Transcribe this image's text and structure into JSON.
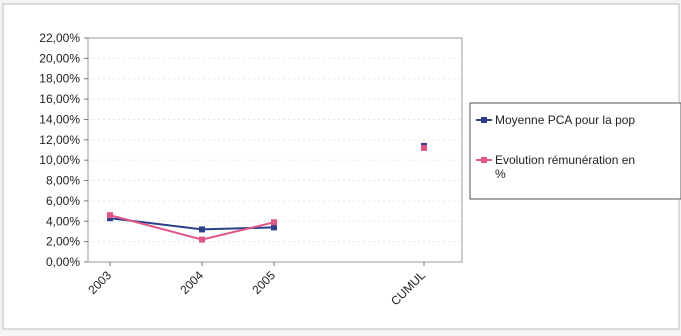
{
  "chart_data": {
    "type": "line",
    "categories": [
      "2003",
      "2004",
      "2005",
      "CUMUL"
    ],
    "yticks": [
      "22,00%",
      "20,00%",
      "18,00%",
      "16,00%",
      "14,00%",
      "12,00%",
      "10,00%",
      "8,00%",
      "6,00%",
      "4,00%",
      "2,00%",
      "0,00%"
    ],
    "ylim": [
      0,
      22
    ],
    "series": [
      {
        "name": "Moyenne PCA pour la pop",
        "color": "#2b3f8a",
        "marker": "square",
        "line_values": [
          4.3,
          3.2,
          3.4
        ],
        "cumul_value": 11.4
      },
      {
        "name": "Evolution rémunération en %",
        "color": "#e0558a",
        "marker": "square",
        "line_values": [
          4.6,
          2.2,
          3.9
        ],
        "cumul_value": 11.2
      }
    ],
    "legend": {
      "position": "right",
      "lines": [
        [
          "Moyenne PCA pour la pop"
        ],
        [
          "Evolution rémunération en",
          "%"
        ]
      ]
    },
    "grid": true
  }
}
